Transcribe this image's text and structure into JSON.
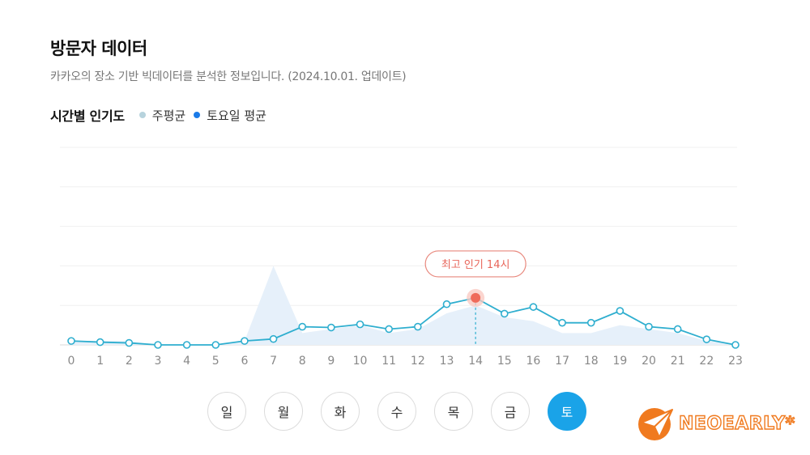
{
  "header": {
    "title": "방문자 데이터",
    "subtitle": "카카오의 장소 기반 빅데이터를 분석한 정보입니다. (2024.10.01. 업데이트)"
  },
  "legend": {
    "section_label": "시간별 인기도",
    "items": [
      {
        "label": "주평균",
        "color": "#b7d3dd"
      },
      {
        "label": "토요일 평균",
        "color": "#1a7be8"
      }
    ]
  },
  "chart_data": {
    "type": "line",
    "x": [
      0,
      1,
      2,
      3,
      4,
      5,
      6,
      7,
      8,
      9,
      10,
      11,
      12,
      13,
      14,
      15,
      16,
      17,
      18,
      19,
      20,
      21,
      22,
      23
    ],
    "series": [
      {
        "name": "주평균",
        "style": "area",
        "color": "#e6f0fa",
        "values": [
          1,
          1,
          1,
          0,
          0,
          0,
          1,
          20,
          3,
          4,
          5,
          3,
          4,
          8,
          10,
          7,
          6,
          3,
          3,
          5,
          4,
          3,
          1,
          0
        ]
      },
      {
        "name": "토요일 평균",
        "style": "line",
        "color": "#2eaecf",
        "values": [
          1,
          0.7,
          0.5,
          0,
          0,
          0,
          1,
          1.5,
          4.6,
          4.4,
          5.2,
          4,
          4.6,
          10.3,
          11.9,
          7.9,
          9.6,
          5.6,
          5.6,
          8.6,
          4.6,
          4,
          1.4,
          0
        ]
      }
    ],
    "ylim": [
      0,
      50
    ],
    "grid": true,
    "annotation": {
      "x": 14,
      "label": "최고 인기 14시"
    }
  },
  "days": [
    {
      "label": "일",
      "active": false
    },
    {
      "label": "월",
      "active": false
    },
    {
      "label": "화",
      "active": false
    },
    {
      "label": "수",
      "active": false
    },
    {
      "label": "목",
      "active": false
    },
    {
      "label": "금",
      "active": false
    },
    {
      "label": "토",
      "active": true
    }
  ],
  "watermark": {
    "text": "NEOEARLY*",
    "color": "#f07a1f"
  }
}
